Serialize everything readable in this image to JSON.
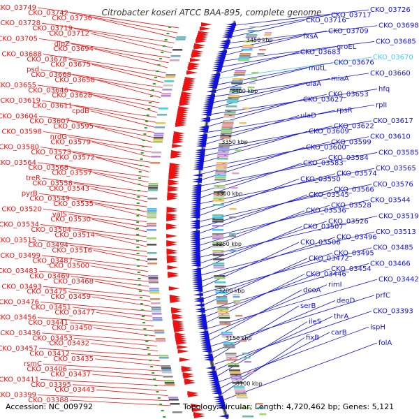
{
  "header": {
    "title": "Citrobacter koseri ATCC BAA-895, complete genome"
  },
  "footer": {
    "accession": "Accession: NC_009792",
    "topology": "Topology: circular; Length: 4,720,462 bp; Genes: 5,121"
  },
  "colors": {
    "forward_strand": "#ee1111",
    "reverse_strand": "#1111dd",
    "highlight": "#44ccee",
    "backbone": "#777777",
    "tick_mark": "#22aa22"
  },
  "ticks": [
    "3450 kbp",
    "3400 kbp",
    "3350 kbp",
    "3300 kbp",
    "3250 kbp",
    "3200 kbp",
    "3150 kbp",
    "3100 kbp"
  ],
  "left_labels": [
    "CKO_03749",
    "CKO_03742",
    "CKO_03736",
    "CKO_03728",
    "CKO_03719",
    "CKO_03712",
    "CKO_03705",
    "dipZ",
    "CKO_03694",
    "CKO_03688",
    "CKO_03678",
    "CKO_03675",
    "psd",
    "CKO_03668",
    "CKO_03658",
    "CKO_03655",
    "CKO_03646",
    "CKO_03628",
    "CKO_03619",
    "CKO_03611",
    "cpdB",
    "CKO_03604",
    "CKO_03607",
    "CKO_03595",
    "CKO_03598",
    "nrdG",
    "CKO_03579",
    "CKO_03580",
    "CKO_03573",
    "CKO_03572",
    "CKO_03564",
    "CKO_03568",
    "CKO_03557",
    "treR",
    "CKO_03558",
    "CKO_03543",
    "pyrB",
    "CKO_03549",
    "CKO_03535",
    "CKO_03520",
    "valS",
    "CKO_03530",
    "CKO_03534",
    "CKO_03504",
    "CKO_03514",
    "CKO_03515",
    "CKO_03494",
    "CKO_03516",
    "CKO_03499",
    "CKO_03487",
    "CKO_03500",
    "CKO_03483",
    "CKO_03469",
    "CKO_03468",
    "CKO_03493",
    "CKO_03475",
    "CKO_03459",
    "CKO_03476",
    "CKO_03451",
    "CKO_03477",
    "CKO_03456",
    "CKO_03441",
    "CKO_03450",
    "CKO_03436",
    "CKO_03453",
    "CKO_03432",
    "CKO_03457",
    "CKO_03412",
    "CKO_03435",
    "rsmC",
    "CKO_03406",
    "CKO_03437",
    "CKO_03411",
    "CKO_03395",
    "CKO_03443",
    "CKO_03399",
    "CKO_03388"
  ],
  "right_labels": [
    "CKO_03726",
    "CKO_03717",
    "CKO_03716",
    "CKO_03698",
    "CKO_03709",
    "fxsA",
    "CKO_03685",
    "groEL",
    "CKO_03683",
    "CKO_03670",
    "CKO_03676",
    "mutL",
    "CKO_03660",
    "miaA",
    "ulaA",
    "hfq",
    "CKO_03653",
    "CKO_03627",
    "rplI",
    "rpsR",
    "ulaD",
    "CKO_03617",
    "CKO_03622",
    "CKO_03609",
    "CKO_03610",
    "CKO_03599",
    "CKO_03600",
    "CKO_03585",
    "CKO_03584",
    "CKO_03583",
    "CKO_03565",
    "CKO_03574",
    "CKO_03550",
    "CKO_03576",
    "CKO_03566",
    "CKO_03545",
    "CKO_03544",
    "CKO_03528",
    "CKO_03536",
    "CKO_03519",
    "CKO_03526",
    "CKO_03507",
    "CKO_03513",
    "CKO_03496",
    "CKO_03506",
    "CKO_03485",
    "CKO_03495",
    "CKO_03472",
    "CKO_03466",
    "CKO_03454",
    "CKO_03446",
    "CKO_03442",
    "rimI",
    "deoA",
    "prfC",
    "deoD",
    "serB",
    "CKO_03393",
    "thrA",
    "ileS",
    "ispH",
    "carB",
    "fixB",
    "folA"
  ]
}
